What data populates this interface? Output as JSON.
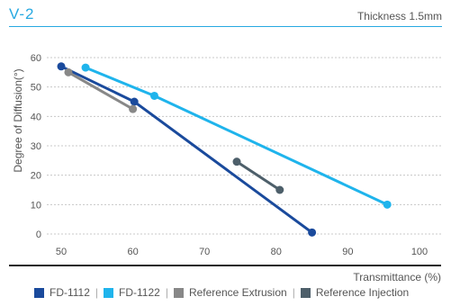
{
  "header": {
    "title": "V-2",
    "subtitle": "Thickness 1.5mm"
  },
  "colors": {
    "accent": "#27a9e1"
  },
  "chart_data": {
    "type": "line",
    "xlabel": "Transmittance (%)",
    "ylabel": "Degree of Diffusion(°)",
    "xlim": [
      50,
      100
    ],
    "ylim": [
      0,
      60
    ],
    "x_ticks": [
      50,
      60,
      70,
      80,
      90,
      100
    ],
    "y_ticks": [
      0,
      10,
      20,
      30,
      40,
      50,
      60
    ],
    "grid": "horizontal dashed",
    "legend": "bottom",
    "series": [
      {
        "name": "FD-1112",
        "color": "#1a4a9c",
        "points": [
          [
            50,
            57
          ],
          [
            60.2,
            45
          ],
          [
            85,
            0.5
          ]
        ]
      },
      {
        "name": "FD-1122",
        "color": "#1fb4ec",
        "points": [
          [
            53.4,
            56.6
          ],
          [
            63,
            47
          ],
          [
            95.5,
            10
          ]
        ]
      },
      {
        "name": "Reference Extrusion",
        "color": "#888888",
        "points": [
          [
            51,
            55
          ],
          [
            60,
            42.5
          ]
        ]
      },
      {
        "name": "Reference Injection",
        "color": "#4d5f6a",
        "points": [
          [
            74.5,
            24.6
          ],
          [
            80.5,
            15
          ]
        ]
      }
    ]
  }
}
